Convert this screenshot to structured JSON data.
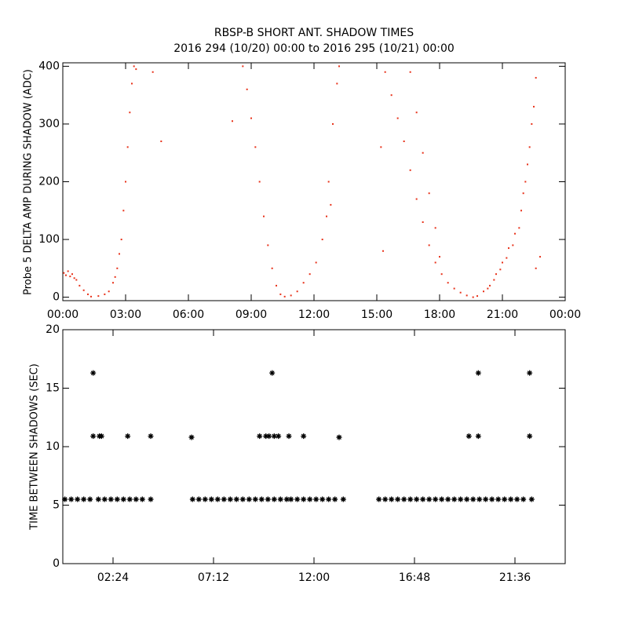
{
  "chart_data": [
    {
      "type": "scatter",
      "title": "RBSP-B SHORT ANT. SHADOW TIMES",
      "subtitle": "2016 294 (10/20) 00:00 to 2016 295 (10/21) 00:00",
      "ylabel": "Probe 5 DELTA AMP DURING SHADOW (ADC)",
      "color": "#e8321a",
      "xlim": [
        0,
        24
      ],
      "ylim": [
        -6,
        406
      ],
      "xticks": [
        {
          "value": 0,
          "label": "00:00"
        },
        {
          "value": 3,
          "label": "03:00"
        },
        {
          "value": 6,
          "label": "06:00"
        },
        {
          "value": 9,
          "label": "09:00"
        },
        {
          "value": 12,
          "label": "12:00"
        },
        {
          "value": 15,
          "label": "15:00"
        },
        {
          "value": 18,
          "label": "18:00"
        },
        {
          "value": 21,
          "label": "21:00"
        },
        {
          "value": 24,
          "label": "00:00"
        }
      ],
      "yticks": [
        0,
        100,
        200,
        300,
        400
      ],
      "x": [
        0.05,
        0.15,
        0.25,
        0.35,
        0.45,
        0.55,
        0.65,
        0.8,
        1.0,
        1.2,
        1.35,
        1.7,
        2.0,
        2.2,
        2.4,
        2.5,
        2.6,
        2.7,
        2.8,
        2.9,
        3.0,
        3.1,
        3.2,
        3.3,
        3.4,
        3.5,
        4.3,
        4.7,
        8.1,
        8.6,
        8.8,
        9.0,
        9.2,
        9.4,
        9.6,
        9.8,
        10.0,
        10.2,
        10.4,
        10.6,
        10.9,
        11.2,
        11.5,
        11.8,
        12.1,
        12.4,
        12.6,
        12.7,
        12.8,
        12.9,
        13.1,
        13.2,
        15.2,
        15.3,
        15.4,
        15.7,
        16.0,
        16.3,
        16.6,
        16.9,
        17.2,
        17.5,
        17.8,
        18.1,
        18.4,
        18.7,
        19.0,
        19.3,
        19.6,
        16.6,
        16.9,
        17.2,
        17.5,
        17.8,
        18.0,
        19.8,
        20.1,
        20.4,
        20.7,
        21.0,
        21.3,
        21.6,
        21.9,
        22.1,
        22.3,
        22.5,
        22.6,
        20.3,
        20.6,
        20.9,
        21.2,
        21.5,
        21.8,
        22.0,
        22.2,
        22.4,
        22.6,
        22.8
      ],
      "values": [
        42,
        38,
        45,
        36,
        40,
        33,
        30,
        20,
        12,
        5,
        1,
        2,
        5,
        10,
        25,
        35,
        50,
        75,
        100,
        150,
        200,
        260,
        320,
        370,
        400,
        395,
        390,
        270,
        305,
        400,
        360,
        310,
        260,
        200,
        140,
        90,
        50,
        20,
        5,
        1,
        3,
        10,
        25,
        40,
        60,
        100,
        140,
        200,
        160,
        300,
        370,
        400,
        260,
        80,
        390,
        350,
        310,
        270,
        220,
        170,
        130,
        90,
        60,
        40,
        25,
        15,
        8,
        3,
        0,
        390,
        320,
        250,
        180,
        120,
        70,
        2,
        10,
        20,
        40,
        60,
        85,
        110,
        150,
        200,
        260,
        330,
        380,
        15,
        30,
        48,
        68,
        90,
        120,
        180,
        230,
        300,
        50,
        70
      ]
    },
    {
      "type": "scatter",
      "ylabel": "TIME BETWEEN SHADOWS (SEC)",
      "color": "#000000",
      "xlim": [
        0,
        24
      ],
      "ylim": [
        0,
        20
      ],
      "xticks": [
        {
          "value": 2.4,
          "label": "02:24"
        },
        {
          "value": 7.2,
          "label": "07:12"
        },
        {
          "value": 12,
          "label": "12:00"
        },
        {
          "value": 16.8,
          "label": "16:48"
        },
        {
          "value": 21.6,
          "label": "21:36"
        }
      ],
      "yticks": [
        0,
        5,
        10,
        15,
        20
      ],
      "x": [
        0.1,
        0.4,
        0.7,
        1.0,
        1.3,
        1.7,
        2.0,
        2.3,
        2.6,
        2.9,
        3.2,
        3.5,
        3.8,
        4.2,
        6.2,
        6.5,
        6.8,
        7.1,
        7.4,
        7.7,
        8.0,
        8.3,
        8.6,
        8.9,
        9.2,
        9.5,
        9.8,
        10.1,
        10.4,
        10.7,
        10.9,
        11.2,
        11.5,
        11.8,
        12.1,
        12.4,
        12.7,
        13.0,
        13.4,
        15.1,
        15.4,
        15.7,
        16.0,
        16.3,
        16.6,
        16.9,
        17.2,
        17.5,
        17.8,
        18.1,
        18.4,
        18.7,
        19.0,
        19.3,
        19.6,
        19.9,
        20.2,
        20.5,
        20.8,
        21.1,
        21.4,
        21.7,
        22.0,
        22.4,
        1.45,
        1.45,
        1.75,
        1.85,
        3.1,
        4.2,
        6.15,
        9.4,
        9.7,
        9.85,
        10.0,
        10.1,
        10.3,
        10.8,
        11.5,
        13.2,
        19.4,
        19.85,
        19.85,
        22.3,
        22.3
      ],
      "values": [
        5.5,
        5.5,
        5.5,
        5.5,
        5.5,
        5.5,
        5.5,
        5.5,
        5.5,
        5.5,
        5.5,
        5.5,
        5.5,
        5.5,
        5.5,
        5.5,
        5.5,
        5.5,
        5.5,
        5.5,
        5.5,
        5.5,
        5.5,
        5.5,
        5.5,
        5.5,
        5.5,
        5.5,
        5.5,
        5.5,
        5.5,
        5.5,
        5.5,
        5.5,
        5.5,
        5.5,
        5.5,
        5.5,
        5.5,
        5.5,
        5.5,
        5.5,
        5.5,
        5.5,
        5.5,
        5.5,
        5.5,
        5.5,
        5.5,
        5.5,
        5.5,
        5.5,
        5.5,
        5.5,
        5.5,
        5.5,
        5.5,
        5.5,
        5.5,
        5.5,
        5.5,
        5.5,
        5.5,
        5.5,
        16.3,
        10.9,
        10.9,
        10.9,
        10.9,
        10.9,
        10.8,
        10.9,
        10.9,
        10.9,
        16.3,
        10.9,
        10.9,
        10.9,
        10.9,
        10.8,
        10.9,
        16.3,
        10.9,
        16.3,
        10.9
      ]
    }
  ]
}
